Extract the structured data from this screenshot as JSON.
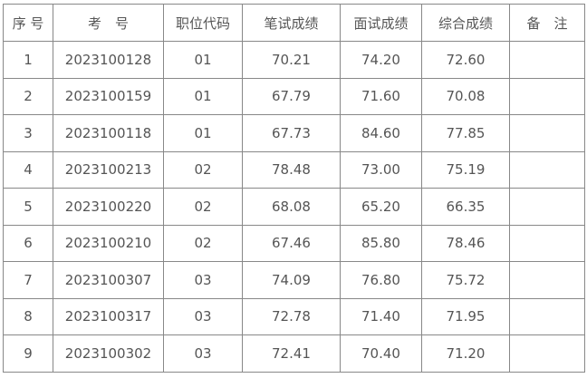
{
  "headers": [
    "序 号",
    "考　号",
    "职位代码",
    "笔试成绩",
    "面试成绩",
    "综合成绩",
    "备　注"
  ],
  "rows": [
    [
      "1",
      "2023100128",
      "01",
      "70.21",
      "74.20",
      "72.60",
      ""
    ],
    [
      "2",
      "2023100159",
      "01",
      "67.79",
      "71.60",
      "70.08",
      ""
    ],
    [
      "3",
      "2023100118",
      "01",
      "67.73",
      "84.60",
      "77.85",
      ""
    ],
    [
      "4",
      "2023100213",
      "02",
      "78.48",
      "73.00",
      "75.19",
      ""
    ],
    [
      "5",
      "2023100220",
      "02",
      "68.08",
      "65.20",
      "66.35",
      ""
    ],
    [
      "6",
      "2023100210",
      "02",
      "67.46",
      "85.80",
      "78.46",
      ""
    ],
    [
      "7",
      "2023100307",
      "03",
      "74.09",
      "76.80",
      "75.72",
      ""
    ],
    [
      "8",
      "2023100317",
      "03",
      "72.78",
      "71.40",
      "71.95",
      ""
    ],
    [
      "9",
      "2023100302",
      "03",
      "72.41",
      "70.40",
      "71.20",
      ""
    ]
  ]
}
